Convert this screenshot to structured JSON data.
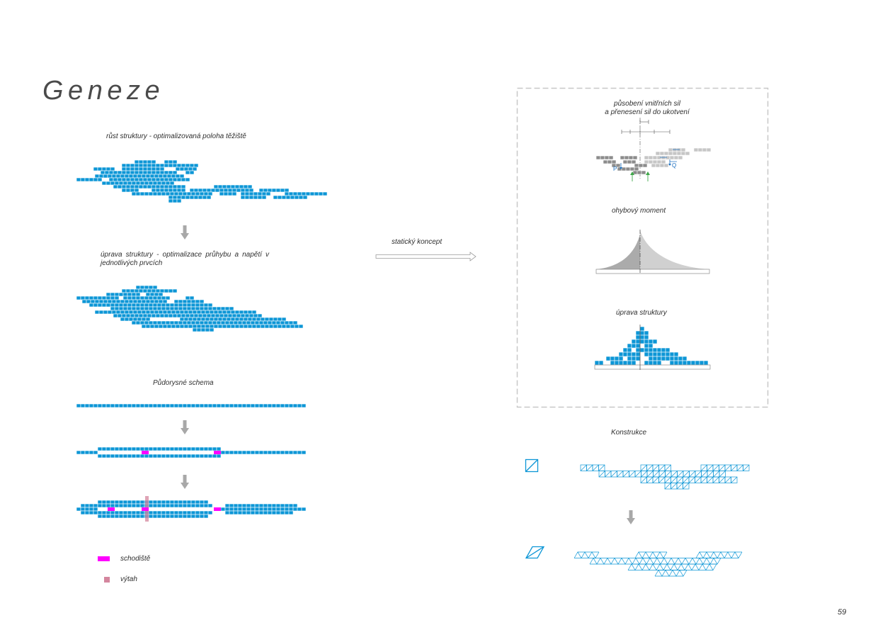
{
  "page": {
    "title": "Geneze",
    "page_number": "59"
  },
  "left": {
    "growth": {
      "caption": "růst struktury - optimalizovaná poloha těžiště"
    },
    "adjustment": {
      "caption_lines": [
        "úprava struktury - optimalizace průhybu a napětí v",
        "jednotlivých prvcích"
      ]
    },
    "floor_plan": {
      "caption": "Půdorysné schema"
    },
    "legend": [
      {
        "label": "schodiště",
        "color": "#ff00ff"
      },
      {
        "label": "výtah",
        "color": "#d4869e"
      }
    ]
  },
  "middle": {
    "concept_label": "statický koncept"
  },
  "static_box": {
    "forces_caption_lines": [
      "působení vnitřních sil",
      "a přenesení sil do ukotvení"
    ],
    "force_labels": {
      "p": "P",
      "q": "Q"
    },
    "moment_caption": "ohybový moment",
    "adjusted_caption": "úprava struktury"
  },
  "construction": {
    "caption": "Konstrukce"
  },
  "colors": {
    "module_blue": "#0d96d6",
    "stair_magenta": "#ff00ff",
    "lift_pink": "#d4869e",
    "arrow_gray": "#a8a8a8",
    "box_dash": "#c8c8c8",
    "moment_dark": "#ababab",
    "moment_light": "#d0d0d0",
    "force_dark": "#8c8c8c",
    "force_light": "#c6c6c6",
    "support_green": "#3fa84a",
    "force_blue": "#1a6fc0",
    "line_dark": "#555555"
  }
}
